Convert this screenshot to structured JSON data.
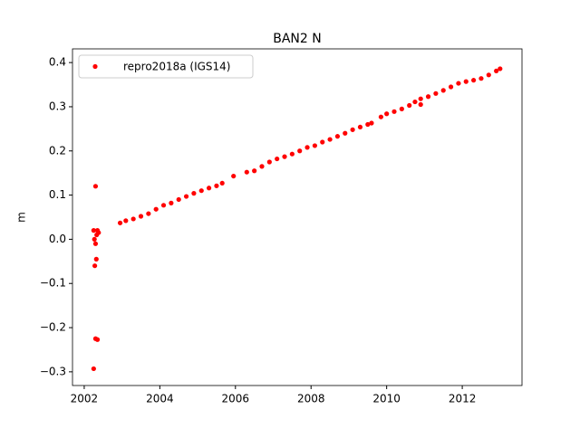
{
  "chart_data": {
    "type": "scatter",
    "title": "BAN2 N",
    "ylabel": "m",
    "xlim": [
      2001.69,
      2013.58
    ],
    "ylim": [
      -0.331,
      0.431
    ],
    "xticks": [
      2002,
      2004,
      2006,
      2008,
      2010,
      2012
    ],
    "yticks": [
      {
        "value": -0.3,
        "label": "−0.3"
      },
      {
        "value": -0.2,
        "label": "−0.2"
      },
      {
        "value": -0.1,
        "label": "−0.1"
      },
      {
        "value": 0,
        "label": "0.0"
      },
      0.1,
      0.2,
      0.3,
      0.4
    ],
    "legend": "upper left",
    "series": [
      {
        "name": "repro2018a (IGS14)",
        "color": "#ff0000",
        "x": [
          2002.25,
          2002.27,
          2002.28,
          2002.3,
          2002.3,
          2002.32,
          2002.3,
          2002.35,
          2002.25,
          2002.38,
          2002.35,
          2002.33,
          2002.95,
          2003.1,
          2003.3,
          2003.5,
          2003.7,
          2003.9,
          2004.1,
          2004.3,
          2004.5,
          2004.7,
          2004.9,
          2005.1,
          2005.3,
          2005.5,
          2005.65,
          2005.95,
          2006.3,
          2006.5,
          2006.7,
          2006.9,
          2007.1,
          2007.3,
          2007.5,
          2007.7,
          2007.9,
          2008.1,
          2008.3,
          2008.5,
          2008.7,
          2008.9,
          2009.1,
          2009.3,
          2009.5,
          2009.6,
          2009.85,
          2010.0,
          2010.2,
          2010.4,
          2010.6,
          2010.75,
          2010.9,
          2010.9,
          2011.1,
          2011.3,
          2011.5,
          2011.7,
          2011.9,
          2012.1,
          2012.3,
          2012.5,
          2012.7,
          2012.9,
          2013.0
        ],
        "values": [
          0.02,
          0.0,
          -0.06,
          0.12,
          -0.01,
          -0.045,
          -0.225,
          -0.227,
          -0.293,
          0.015,
          0.02,
          0.01,
          0.037,
          0.042,
          0.046,
          0.052,
          0.058,
          0.068,
          0.077,
          0.082,
          0.09,
          0.097,
          0.104,
          0.11,
          0.116,
          0.121,
          0.127,
          0.143,
          0.152,
          0.155,
          0.165,
          0.175,
          0.182,
          0.187,
          0.193,
          0.2,
          0.208,
          0.212,
          0.22,
          0.226,
          0.233,
          0.24,
          0.248,
          0.254,
          0.26,
          0.263,
          0.277,
          0.284,
          0.289,
          0.295,
          0.303,
          0.311,
          0.305,
          0.318,
          0.323,
          0.33,
          0.337,
          0.345,
          0.353,
          0.357,
          0.36,
          0.364,
          0.372,
          0.381,
          0.386
        ]
      }
    ]
  }
}
